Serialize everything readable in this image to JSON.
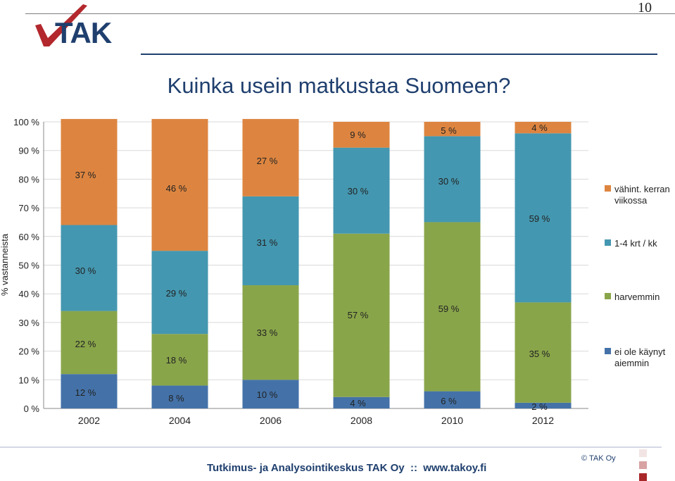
{
  "page": {
    "number": "10",
    "title": "Kuinka usein matkustaa Suomeen?"
  },
  "logo": {
    "text": "TAK"
  },
  "footer": {
    "text": "Tutkimus- ja Analysointikeskus TAK Oy  ::  www.takoy.fi",
    "copyright": "© TAK Oy"
  },
  "colors": {
    "accent": "#1f3f6e",
    "vahint_kerran_viikossa": "#dd8540",
    "krt_kk": "#4497b0",
    "harvemmin": "#89a54a",
    "ei_ole_kaynyt": "#4472a8"
  },
  "chart_data": {
    "type": "bar",
    "stacked": true,
    "categories": [
      "2002",
      "2004",
      "2006",
      "2008",
      "2010",
      "2012"
    ],
    "ylabel": "% vastanneista",
    "ylim": [
      0,
      100
    ],
    "yticks": [
      "0 %",
      "10 %",
      "20 %",
      "30 %",
      "40 %",
      "50 %",
      "60 %",
      "70 %",
      "80 %",
      "90 %",
      "100 %"
    ],
    "legend_position": "right",
    "series": [
      {
        "name": "ei ole käynyt aiemmin",
        "color": "#4472a8",
        "values": [
          12,
          8,
          10,
          4,
          6,
          2
        ],
        "labels": [
          "12 %",
          "8 %",
          "10 %",
          "4 %",
          "6 %",
          "2 %"
        ]
      },
      {
        "name": "harvemmin",
        "color": "#89a54a",
        "values": [
          22,
          18,
          33,
          57,
          59,
          35
        ],
        "labels": [
          "22 %",
          "18 %",
          "33 %",
          "57 %",
          "59 %",
          "35 %"
        ]
      },
      {
        "name": "1-4 krt / kk",
        "color": "#4497b0",
        "values": [
          30,
          29,
          31,
          30,
          30,
          59
        ],
        "labels": [
          "30 %",
          "29 %",
          "31 %",
          "30 %",
          "30 %",
          "59 %"
        ]
      },
      {
        "name": "vähint. kerran viikossa",
        "color": "#dd8540",
        "values": [
          37,
          46,
          27,
          9,
          5,
          4
        ],
        "labels": [
          "37 %",
          "46 %",
          "27 %",
          "9 %",
          "5 %",
          "4 %"
        ]
      }
    ],
    "legend": [
      {
        "name": "vähint. kerran viikossa",
        "lines": [
          "vähint. kerran",
          "viikossa"
        ],
        "color": "#dd8540"
      },
      {
        "name": "1-4 krt / kk",
        "lines": [
          "1-4 krt / kk"
        ],
        "color": "#4497b0"
      },
      {
        "name": "harvemmin",
        "lines": [
          "harvemmin"
        ],
        "color": "#89a54a"
      },
      {
        "name": "ei ole käynyt aiemmin",
        "lines": [
          "ei ole käynyt",
          "aiemmin"
        ],
        "color": "#4472a8"
      }
    ]
  }
}
